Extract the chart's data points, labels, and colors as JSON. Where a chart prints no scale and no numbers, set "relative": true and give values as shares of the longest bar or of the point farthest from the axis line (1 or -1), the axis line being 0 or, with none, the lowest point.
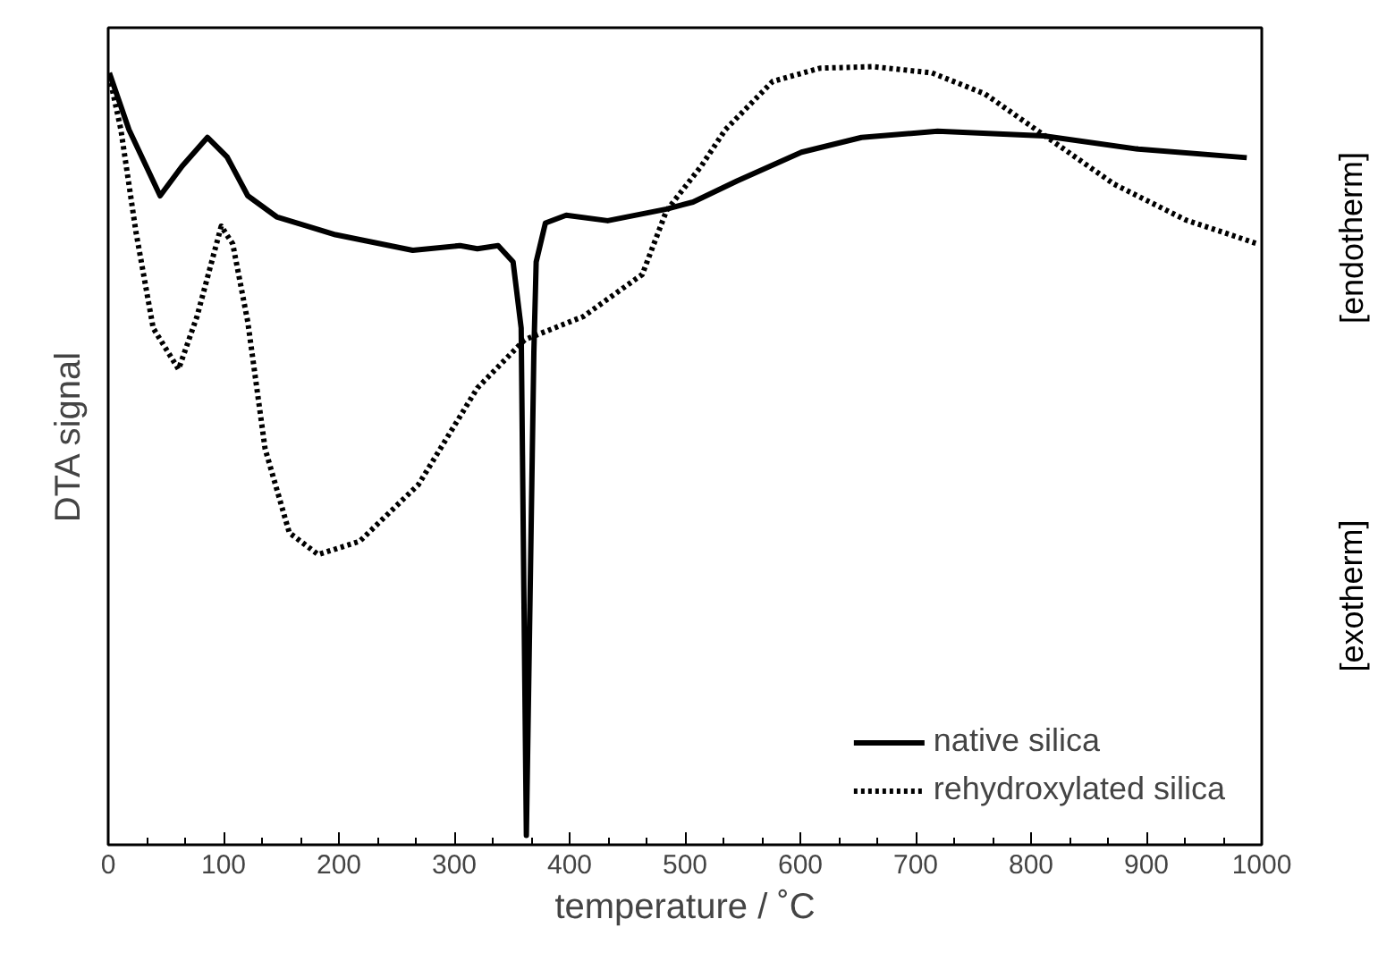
{
  "chart_data": {
    "type": "line",
    "relative": true,
    "xlabel": "temperature / ˚C",
    "ylabel": "DTA signal",
    "xlim": [
      0,
      1000
    ],
    "xticks": [
      0,
      100,
      200,
      300,
      400,
      500,
      600,
      700,
      800,
      900,
      1000
    ],
    "legend": "bottom right",
    "grid": false,
    "annotations": [
      "[endotherm]",
      "[exotherm]"
    ],
    "series": [
      {
        "name": "native silica",
        "color": "#000000",
        "line_style": "solid",
        "x": [
          1,
          18,
          45,
          64,
          86,
          103,
          121,
          146,
          197,
          264,
          305,
          320,
          338,
          351,
          358,
          362.5,
          369,
          371,
          379,
          397,
          433,
          484,
          507,
          545,
          601,
          653,
          719,
          811,
          893,
          987
        ],
        "values": [
          0.992,
          0.919,
          0.834,
          0.872,
          0.909,
          0.884,
          0.834,
          0.807,
          0.784,
          0.764,
          0.77,
          0.766,
          0.77,
          0.749,
          0.664,
          0.012,
          0.633,
          0.749,
          0.799,
          0.809,
          0.802,
          0.817,
          0.826,
          0.853,
          0.89,
          0.909,
          0.917,
          0.911,
          0.894,
          0.883
        ]
      },
      {
        "name": "rehydroxylated silica",
        "color": "#000000",
        "line_style": "dotted",
        "x": [
          1,
          11,
          24,
          39,
          61,
          77,
          98,
          108,
          121,
          136,
          157,
          182,
          218,
          269,
          320,
          361,
          412,
          463,
          484,
          514,
          535,
          576,
          617,
          663,
          714,
          760,
          816,
          872,
          934,
          997
        ],
        "values": [
          0.988,
          0.919,
          0.788,
          0.664,
          0.611,
          0.679,
          0.795,
          0.772,
          0.672,
          0.509,
          0.401,
          0.373,
          0.39,
          0.463,
          0.587,
          0.649,
          0.679,
          0.733,
          0.815,
          0.872,
          0.919,
          0.981,
          0.998,
          1.0,
          0.992,
          0.965,
          0.907,
          0.849,
          0.803,
          0.772
        ]
      }
    ]
  }
}
